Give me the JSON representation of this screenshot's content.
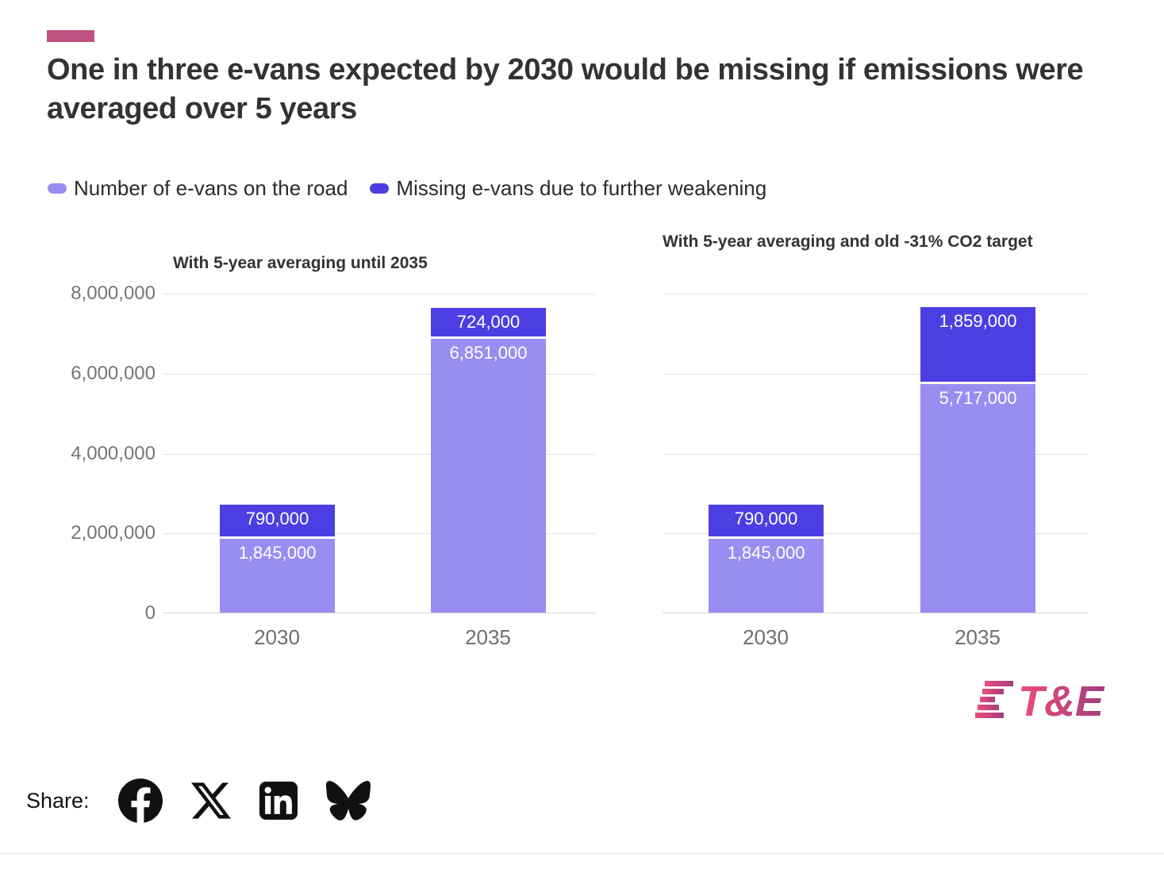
{
  "accent_color": "#bf5280",
  "title": "One in three e-vans expected by 2030 would be missing if emissions were averaged over 5 years",
  "legend": [
    {
      "label": "Number of e-vans on the road",
      "color": "#9a8df2"
    },
    {
      "label": "Missing e-vans due to further weakening",
      "color": "#4b3fe3"
    }
  ],
  "chart_data": [
    {
      "type": "bar",
      "stacked": true,
      "title": "With 5-year averaging until 2035",
      "categories": [
        "2030",
        "2035"
      ],
      "series": [
        {
          "name": "Number of e-vans on the road",
          "color": "#9a8df2",
          "values": [
            1845000,
            6851000
          ],
          "labels": [
            "1,845,000",
            "6,851,000"
          ]
        },
        {
          "name": "Missing e-vans due to further weakening",
          "color": "#4b3fe3",
          "values": [
            790000,
            724000
          ],
          "labels": [
            "790,000",
            "724,000"
          ]
        }
      ],
      "ylim": [
        0,
        8000000
      ],
      "yticks": [
        "8,000,000",
        "6,000,000",
        "4,000,000",
        "2,000,000",
        "0"
      ],
      "grid": true,
      "legend_position": "top"
    },
    {
      "type": "bar",
      "stacked": true,
      "title": "With 5-year averaging and old -31% CO2 target",
      "categories": [
        "2030",
        "2035"
      ],
      "series": [
        {
          "name": "Number of e-vans on the road",
          "color": "#9a8df2",
          "values": [
            1845000,
            5717000
          ],
          "labels": [
            "1,845,000",
            "5,717,000"
          ]
        },
        {
          "name": "Missing e-vans due to further weakening",
          "color": "#4b3fe3",
          "values": [
            790000,
            1859000
          ],
          "labels": [
            "790,000",
            "1,859,000"
          ]
        }
      ],
      "ylim": [
        0,
        8000000
      ],
      "yticks": [],
      "grid": true,
      "legend_position": "top"
    }
  ],
  "logo": {
    "text": "T&E"
  },
  "share": {
    "label": "Share:",
    "icons": [
      "facebook",
      "x",
      "linkedin",
      "bluesky"
    ]
  }
}
